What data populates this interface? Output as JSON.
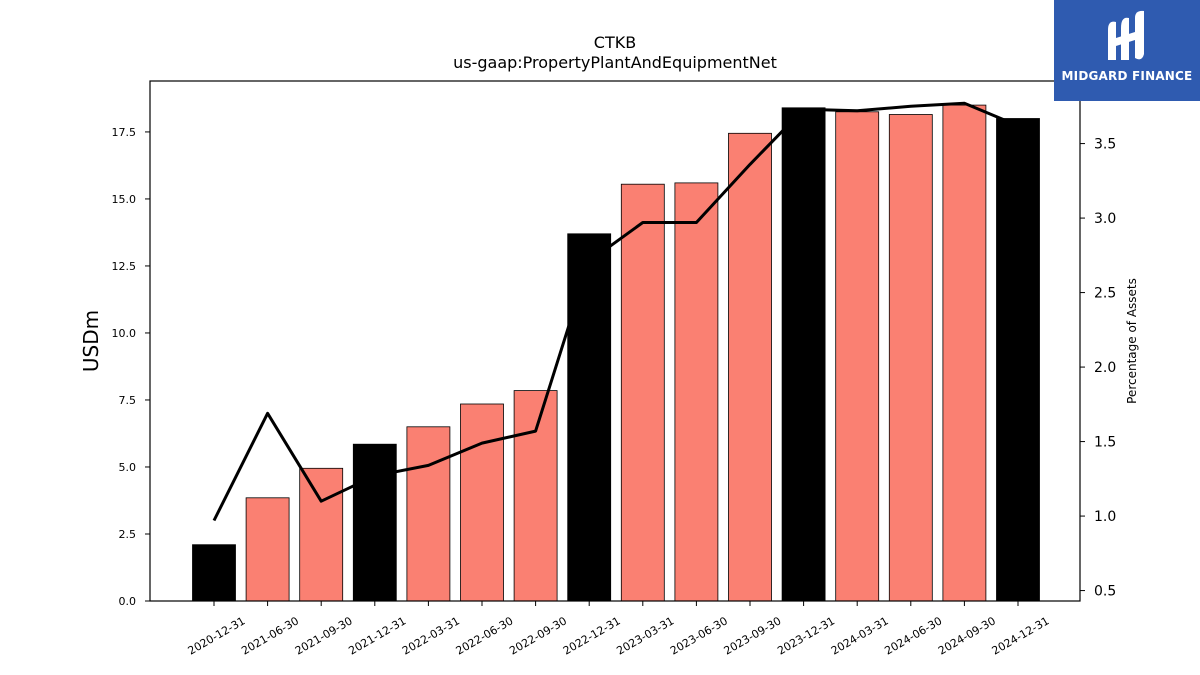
{
  "chart_data": {
    "type": "bar",
    "title": "CTKB",
    "subtitle": "us-gaap:PropertyPlantAndEquipmentNet",
    "ylabel": "USDm",
    "y2label": "Percentage of Assets",
    "ylim": [
      0,
      19.4
    ],
    "y2lim": [
      0.43,
      3.92
    ],
    "yticks": [
      "0.0",
      "2.5",
      "5.0",
      "7.5",
      "10.0",
      "12.5",
      "15.0",
      "17.5"
    ],
    "y2ticks": [
      "0.5",
      "1.0",
      "1.5",
      "2.0",
      "2.5",
      "3.0",
      "3.5"
    ],
    "categories": [
      "2020-12-31",
      "2021-06-30",
      "2021-09-30",
      "2021-12-31",
      "2022-03-31",
      "2022-06-30",
      "2022-09-30",
      "2022-12-31",
      "2023-03-31",
      "2023-06-30",
      "2023-09-30",
      "2023-12-31",
      "2024-03-31",
      "2024-06-30",
      "2024-09-30",
      "2024-12-31"
    ],
    "series": [
      {
        "type": "bar",
        "axis": "left",
        "values": [
          2.1,
          3.85,
          4.95,
          5.85,
          6.5,
          7.35,
          7.85,
          13.7,
          15.55,
          15.6,
          17.45,
          18.4,
          18.25,
          18.15,
          18.5,
          18.0
        ],
        "colors": [
          "#000000",
          "#fa8072",
          "#fa8072",
          "#000000",
          "#fa8072",
          "#fa8072",
          "#fa8072",
          "#000000",
          "#fa8072",
          "#fa8072",
          "#fa8072",
          "#000000",
          "#fa8072",
          "#fa8072",
          "#fa8072",
          "#000000"
        ]
      },
      {
        "type": "line",
        "axis": "right",
        "values": [
          0.97,
          1.69,
          1.1,
          1.27,
          1.34,
          1.49,
          1.57,
          2.71,
          2.97,
          2.97,
          3.36,
          3.73,
          3.72,
          3.75,
          3.77,
          3.62
        ],
        "color": "#000000"
      }
    ],
    "annual_color": "#000000",
    "quarter_color": "#fa8072"
  },
  "logo": {
    "text": "MIDGARD FINANCE",
    "bg_color": "#2f5bb0"
  }
}
